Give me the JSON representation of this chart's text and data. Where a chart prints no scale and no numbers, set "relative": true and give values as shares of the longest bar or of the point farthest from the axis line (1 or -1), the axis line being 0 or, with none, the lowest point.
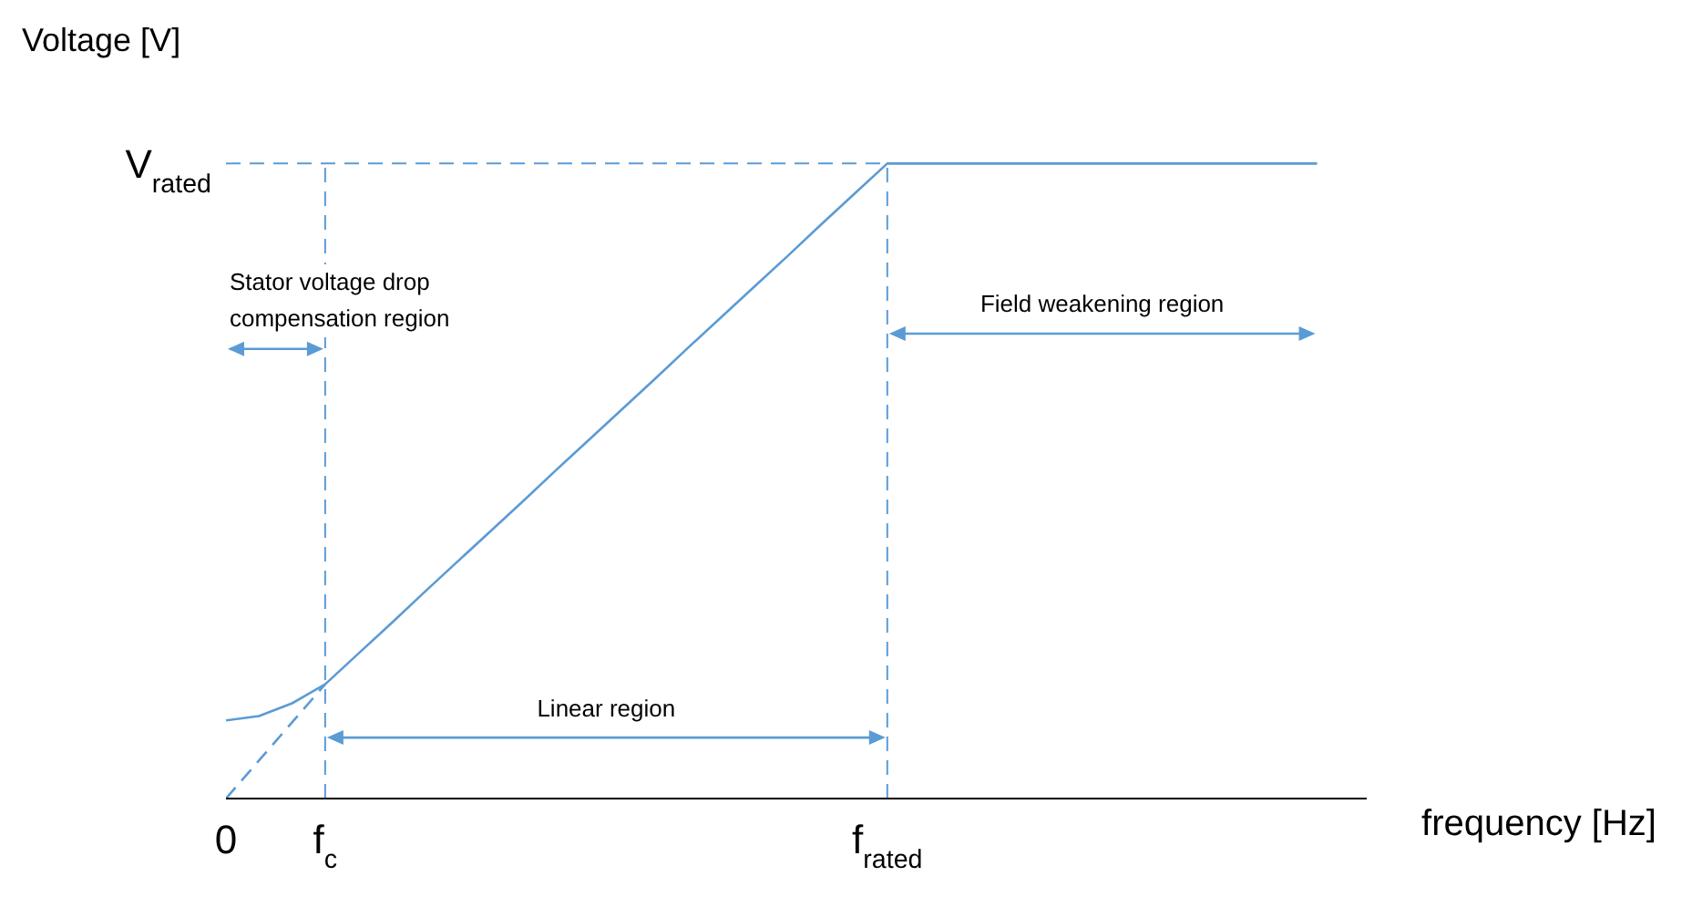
{
  "chart_data": {
    "type": "line",
    "relative": true,
    "xlabel": "frequency [Hz]",
    "ylabel": "Voltage [V]",
    "categories": [
      "0",
      null,
      null,
      "f$_{c}$",
      null,
      null,
      null,
      null,
      null,
      null,
      null,
      null,
      null,
      null,
      null,
      null,
      null,
      null,
      null,
      null,
      "f$_{rated}$",
      null,
      null,
      null,
      null,
      null,
      null,
      null,
      null,
      null,
      null,
      null,
      null,
      null
    ],
    "series": [
      {
        "color": "#5b9bd5",
        "values": [
          0.123,
          0.13,
          0.15,
          0.18,
          0.228,
          0.276,
          0.325,
          0.373,
          0.421,
          0.469,
          0.518,
          0.566,
          0.614,
          0.662,
          0.711,
          0.759,
          0.807,
          0.855,
          0.904,
          0.952,
          1,
          1,
          1,
          1,
          1,
          1,
          1,
          1,
          1,
          1,
          1,
          1,
          1,
          1
        ],
        "line_style": "solid"
      },
      {
        "color": "#5b9bd5",
        "values": [
          0,
          0.06,
          0.12,
          0.18,
          null,
          null,
          null,
          null,
          null,
          null,
          null,
          null,
          null,
          null,
          null,
          null,
          null,
          null,
          null,
          null,
          null,
          null,
          null,
          null,
          null,
          null,
          null,
          null,
          null,
          null,
          null,
          null,
          null,
          null
        ],
        "line_style": "dashed"
      }
    ],
    "ref_lines": [
      {
        "axis": "y",
        "value": 1,
        "label": "V$_{rated}$",
        "color": "#5b9bd5",
        "line_style": "dashed"
      },
      {
        "axis": "x",
        "value": "f$_{c}$",
        "color": "#5b9bd5",
        "line_style": "dashed"
      },
      {
        "axis": "x",
        "value": "f$_{rated}$",
        "color": "#5b9bd5",
        "line_style": "dashed"
      }
    ],
    "annotations": [
      "Stator voltage drop compensation region",
      "Linear region",
      "Field weakening region"
    ],
    "grid": false,
    "legend": false,
    "marker": "none"
  }
}
